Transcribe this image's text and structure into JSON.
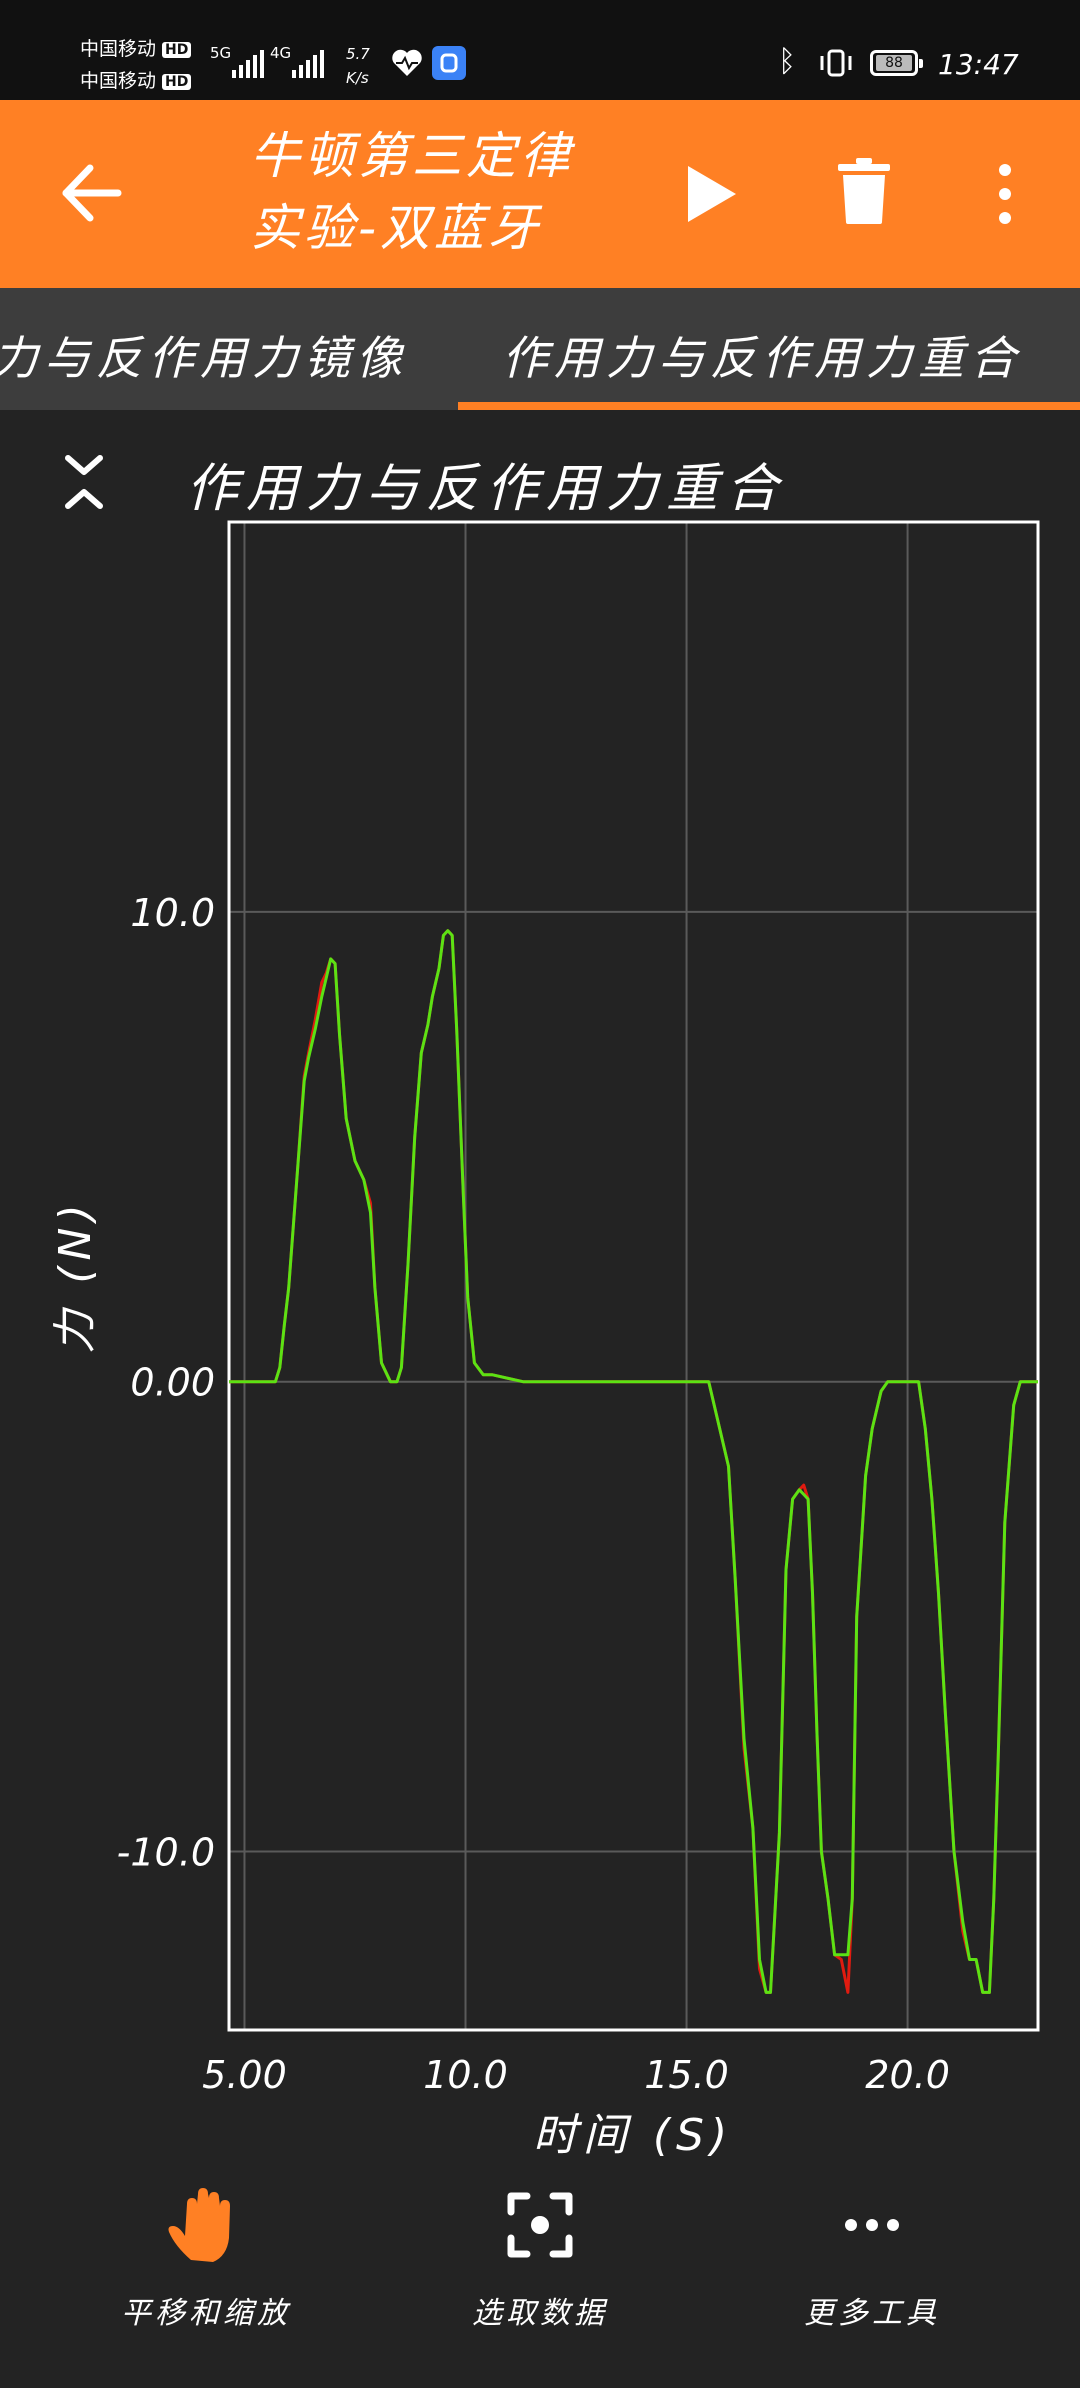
{
  "status_bar": {
    "carrier1": "中国移动",
    "carrier2": "中国移动",
    "hd_badge": "HD",
    "net1": "5G",
    "net2": "4G",
    "speed_value": "5.7",
    "speed_unit": "K/s",
    "battery": "88",
    "time": "13:47"
  },
  "appbar": {
    "title_line1": "牛顿第三定律",
    "title_line2": "实验-双蓝牙",
    "back_icon": "arrow-left-icon",
    "play_icon": "play-icon",
    "delete_icon": "trash-icon",
    "more_icon": "more-vertical-icon"
  },
  "tabs": [
    {
      "label": "力与反作用力镜像",
      "selected": false
    },
    {
      "label": "作用力与反作用力重合",
      "selected": true
    }
  ],
  "accent_color": "#FF8024",
  "chart_header": {
    "title": "作用力与反作用力重合",
    "collapse_icon": "collapse-chevrons-icon"
  },
  "chart_data": {
    "type": "line",
    "title": "",
    "xlabel": "时间 (S)",
    "ylabel": "力 (N)",
    "xlim": [
      4.65,
      22.95
    ],
    "ylim": [
      -13.8,
      18.3
    ],
    "x_ticks": [
      {
        "value": 5,
        "label": "5.00"
      },
      {
        "value": 10,
        "label": "10.0"
      },
      {
        "value": 15,
        "label": "15.0"
      },
      {
        "value": 20,
        "label": "20.0"
      }
    ],
    "y_ticks": [
      {
        "value": 10,
        "label": "10.0"
      },
      {
        "value": 0,
        "label": "0.00"
      },
      {
        "value": -10,
        "label": "-10.0"
      }
    ],
    "grid": true,
    "series": [
      {
        "color": "#E01B10",
        "x": [
          4.65,
          5.7,
          5.8,
          5.9,
          6.0,
          6.2,
          6.35,
          6.45,
          6.6,
          6.75,
          6.85,
          6.95,
          7.05,
          7.15,
          7.3,
          7.5,
          7.7,
          7.85,
          7.95,
          8.1,
          8.3,
          8.45,
          8.55,
          8.7,
          8.85,
          9.0,
          9.15,
          9.25,
          9.4,
          9.5,
          9.6,
          9.7,
          9.8,
          9.95,
          10.05,
          10.2,
          10.4,
          10.6,
          11.3,
          15.5,
          15.75,
          15.95,
          16.1,
          16.3,
          16.5,
          16.65,
          16.8,
          16.9,
          17.1,
          17.25,
          17.4,
          17.55,
          17.65,
          17.75,
          17.85,
          17.95,
          18.05,
          18.2,
          18.35,
          18.5,
          18.65,
          18.75,
          18.85,
          18.95,
          19.05,
          19.2,
          19.4,
          19.55,
          19.7,
          20.25,
          20.4,
          20.55,
          20.7,
          20.85,
          21.05,
          21.25,
          21.4,
          21.55,
          21.7,
          21.85,
          21.95,
          22.05,
          22.2,
          22.4,
          22.55,
          22.95
        ],
        "y": [
          0,
          0,
          0.3,
          1.2,
          2.0,
          4.5,
          6.5,
          7.0,
          7.7,
          8.5,
          8.7,
          9.0,
          8.9,
          7.4,
          5.6,
          4.7,
          4.3,
          3.8,
          2.0,
          0.4,
          0,
          0,
          0.3,
          2.5,
          5.2,
          7.0,
          7.6,
          8.2,
          8.8,
          9.5,
          9.6,
          9.5,
          7.5,
          4.0,
          1.8,
          0.4,
          0.15,
          0.15,
          0,
          0,
          -1.0,
          -1.8,
          -4.2,
          -7.8,
          -9.5,
          -12.5,
          -13.0,
          -13.0,
          -9.6,
          -4.0,
          -2.5,
          -2.3,
          -2.2,
          -2.5,
          -4.5,
          -7.5,
          -10.0,
          -11.0,
          -12.2,
          -12.3,
          -13.0,
          -11.0,
          -5.0,
          -3.5,
          -2.0,
          -1.0,
          -0.2,
          0,
          0,
          0,
          -1.0,
          -2.5,
          -4.5,
          -7.0,
          -10.0,
          -11.7,
          -12.3,
          -12.3,
          -13.0,
          -13.0,
          -11.0,
          -8.0,
          -3.0,
          -0.5,
          0,
          0
        ]
      },
      {
        "color": "#5BE214",
        "x": [
          4.65,
          5.7,
          5.8,
          5.9,
          6.0,
          6.2,
          6.35,
          6.45,
          6.6,
          6.75,
          6.85,
          6.95,
          7.05,
          7.15,
          7.3,
          7.5,
          7.7,
          7.85,
          7.95,
          8.1,
          8.3,
          8.45,
          8.55,
          8.7,
          8.85,
          9.0,
          9.15,
          9.25,
          9.4,
          9.5,
          9.6,
          9.7,
          9.8,
          9.95,
          10.05,
          10.2,
          10.4,
          10.6,
          11.3,
          15.5,
          15.75,
          15.95,
          16.1,
          16.3,
          16.5,
          16.65,
          16.8,
          16.9,
          17.1,
          17.25,
          17.4,
          17.55,
          17.65,
          17.75,
          17.85,
          17.95,
          18.05,
          18.2,
          18.35,
          18.5,
          18.65,
          18.75,
          18.85,
          18.95,
          19.05,
          19.2,
          19.4,
          19.55,
          19.7,
          20.25,
          20.4,
          20.55,
          20.7,
          20.85,
          21.05,
          21.25,
          21.4,
          21.55,
          21.7,
          21.85,
          21.95,
          22.05,
          22.2,
          22.4,
          22.55,
          22.95
        ],
        "y": [
          0,
          0,
          0.3,
          1.2,
          2.0,
          4.5,
          6.4,
          6.9,
          7.5,
          8.2,
          8.6,
          9.0,
          8.9,
          7.4,
          5.6,
          4.7,
          4.3,
          3.6,
          2.0,
          0.4,
          0,
          0,
          0.3,
          2.5,
          5.2,
          7.0,
          7.6,
          8.2,
          8.8,
          9.5,
          9.6,
          9.5,
          7.5,
          4.0,
          1.8,
          0.4,
          0.15,
          0.15,
          0,
          0,
          -1.0,
          -1.8,
          -4.2,
          -7.6,
          -9.5,
          -12.3,
          -13.0,
          -13.0,
          -9.6,
          -4.0,
          -2.5,
          -2.3,
          -2.4,
          -2.5,
          -4.5,
          -7.5,
          -10.0,
          -11.0,
          -12.2,
          -12.2,
          -12.2,
          -11.0,
          -5.0,
          -3.5,
          -2.0,
          -1.0,
          -0.2,
          0,
          0,
          0,
          -1.0,
          -2.5,
          -4.5,
          -7.0,
          -10.0,
          -11.5,
          -12.3,
          -12.3,
          -13.0,
          -13.0,
          -11.0,
          -8.0,
          -3.0,
          -0.5,
          0,
          0
        ]
      }
    ]
  },
  "toolbar": {
    "pan_label": "平移和缩放",
    "select_label": "选取数据",
    "more_label": "更多工具"
  }
}
